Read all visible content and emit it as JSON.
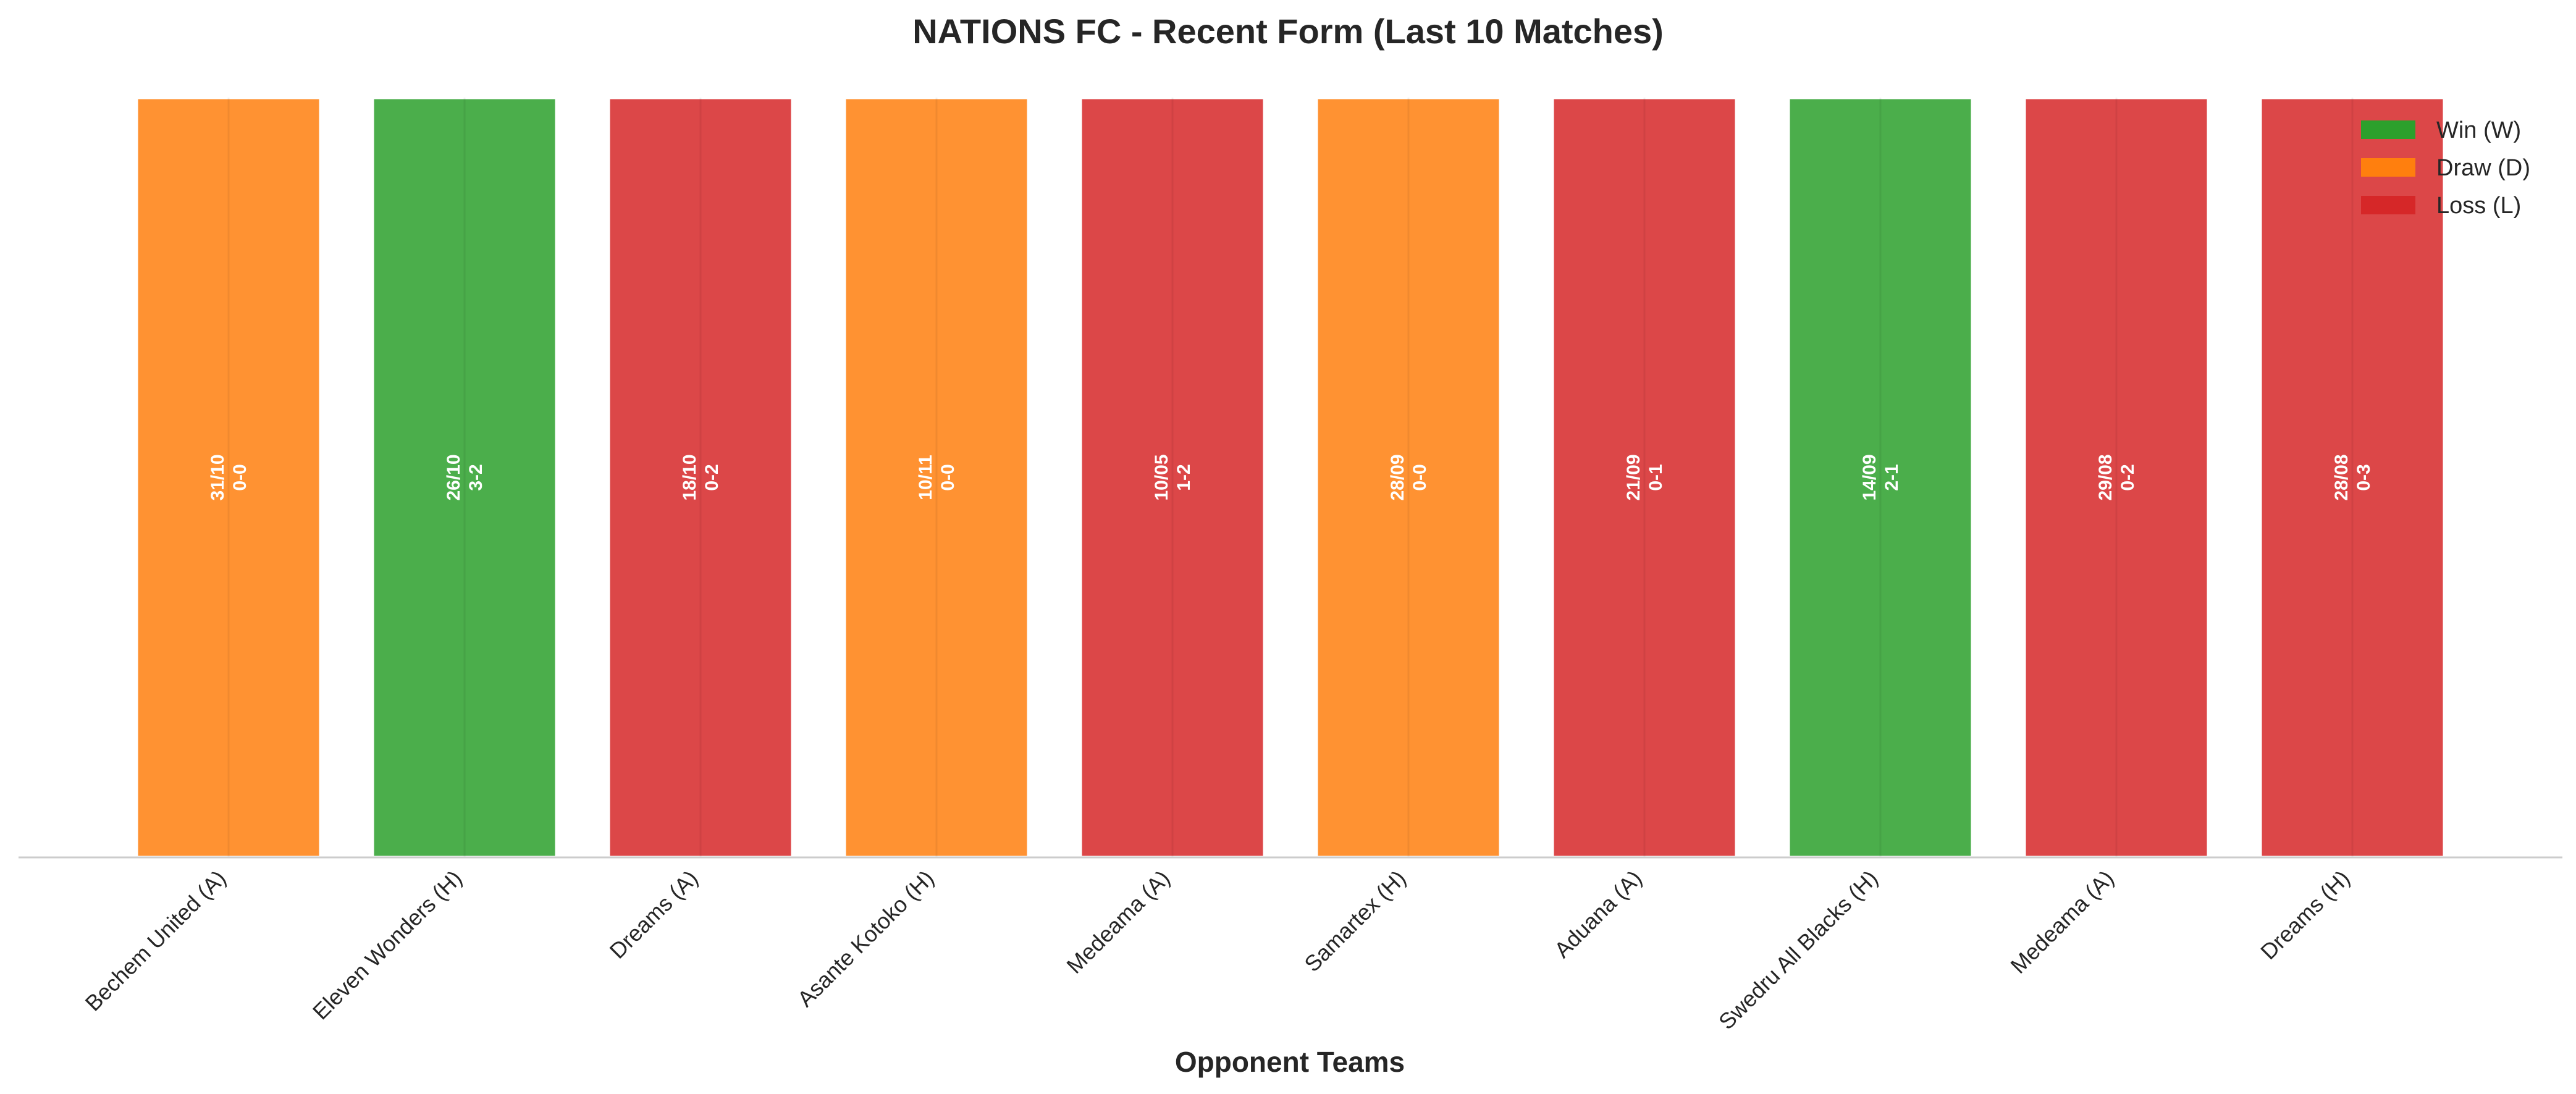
{
  "chart_data": {
    "type": "bar",
    "title": "NATIONS FC - Recent Form (Last 10 Matches)",
    "xlabel": "Opponent Teams",
    "ylabel": "",
    "ylim": [
      0,
      1
    ],
    "grid": false,
    "legend_position": "top-right",
    "categories": [
      "Bechem United (A)",
      "Eleven Wonders (H)",
      "Dreams (A)",
      "Asante Kotoko (H)",
      "Medeama (A)",
      "Samartex (H)",
      "Aduana (A)",
      "Swedru All Blacks (H)",
      "Medeama (A)",
      "Dreams (H)"
    ],
    "values": [
      1,
      1,
      1,
      1,
      1,
      1,
      1,
      1,
      1,
      1
    ],
    "results": [
      "D",
      "W",
      "L",
      "D",
      "L",
      "D",
      "L",
      "W",
      "L",
      "L"
    ],
    "dates": [
      "31/10",
      "26/10",
      "18/10",
      "10/11",
      "10/05",
      "28/09",
      "21/09",
      "14/09",
      "29/08",
      "28/08"
    ],
    "scores": [
      "0-0",
      "3-2",
      "0-2",
      "0-0",
      "1-2",
      "0-0",
      "0-1",
      "2-1",
      "0-2",
      "0-3"
    ],
    "result_colors": {
      "W": "#2ca02c",
      "D": "#ff7f0e",
      "L": "#d62728"
    },
    "legend": [
      {
        "key": "W",
        "label": "Win (W)"
      },
      {
        "key": "D",
        "label": "Draw (D)"
      },
      {
        "key": "L",
        "label": "Loss (L)"
      }
    ]
  }
}
